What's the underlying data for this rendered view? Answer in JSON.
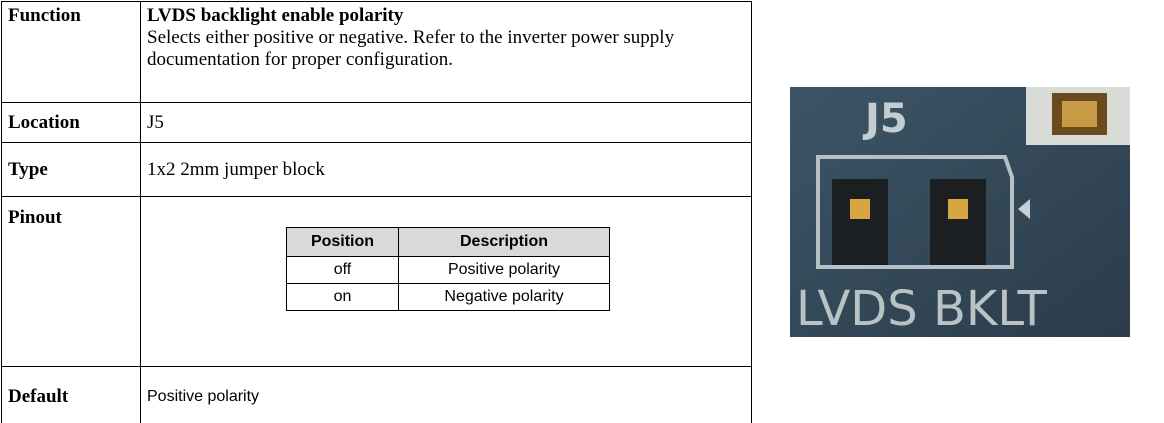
{
  "function": {
    "label": "Function",
    "title": "LVDS backlight enable polarity",
    "description": "Selects either positive or negative.  Refer to the inverter power supply documentation for proper configuration."
  },
  "location": {
    "label": "Location",
    "value": "J5"
  },
  "type": {
    "label": "Type",
    "value": "1x2 2mm jumper block"
  },
  "pinout": {
    "label": "Pinout",
    "table": {
      "header": [
        "Position",
        "Description"
      ],
      "rows": [
        [
          "off",
          "Positive polarity"
        ],
        [
          "on",
          "Negative polarity"
        ]
      ]
    }
  },
  "default": {
    "label": "Default",
    "value": "Positive polarity"
  },
  "photo": {
    "top_label": "J5",
    "bottom_label": "LVDS BKLT"
  }
}
